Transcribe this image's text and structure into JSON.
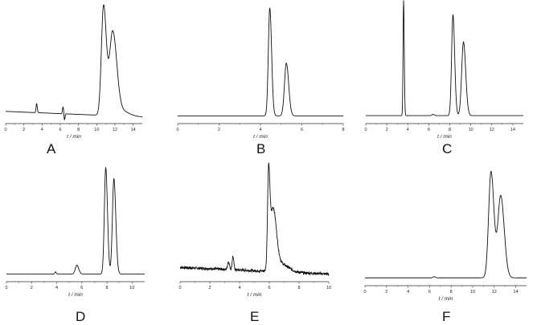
{
  "figure": {
    "panel_letters": [
      "A",
      "B",
      "C",
      "D",
      "E",
      "F"
    ],
    "axis_title": "t / min"
  },
  "chart_data": [
    {
      "type": "line",
      "panel": "A",
      "xlabel": "t / min",
      "xlim": [
        0,
        15
      ],
      "xticks": [
        0,
        2,
        4,
        6,
        8,
        10,
        12,
        14
      ],
      "baseline": {
        "start": 0.08,
        "end": 0.03
      },
      "noise": 0,
      "peaks": [
        {
          "t": 3.4,
          "h": 0.08,
          "w": 0.06
        },
        {
          "t": 6.3,
          "h": 0.06,
          "w": 0.06
        },
        {
          "t": 6.45,
          "h": -0.06,
          "w": 0.05
        },
        {
          "t": 10.75,
          "h": 0.97,
          "w": 0.24
        },
        {
          "t": 11.75,
          "h": 0.73,
          "w": 0.35
        },
        {
          "t": 12.6,
          "h": 0.05,
          "w": 0.7
        }
      ]
    },
    {
      "type": "line",
      "panel": "B",
      "xlabel": "t / min",
      "xlim": [
        0,
        8
      ],
      "xticks": [
        0,
        2,
        4,
        6,
        8
      ],
      "baseline": {
        "start": 0.04,
        "end": 0.04
      },
      "noise": 0,
      "peaks": [
        {
          "t": 4.45,
          "h": 0.96,
          "w": 0.07
        },
        {
          "t": 5.25,
          "h": 0.47,
          "w": 0.09
        }
      ]
    },
    {
      "type": "line",
      "panel": "C",
      "xlabel": "t / min",
      "xlim": [
        0,
        15
      ],
      "xticks": [
        0,
        2,
        4,
        6,
        8,
        10,
        12,
        14
      ],
      "baseline": {
        "start": 0.04,
        "end": 0.04
      },
      "noise": 0,
      "peaks": [
        {
          "t": 3.6,
          "h": 0.97,
          "w": 0.05
        },
        {
          "t": 6.4,
          "h": 0.01,
          "w": 0.1
        },
        {
          "t": 8.3,
          "h": 0.85,
          "w": 0.13
        },
        {
          "t": 9.3,
          "h": 0.62,
          "w": 0.17
        }
      ]
    },
    {
      "type": "line",
      "panel": "D",
      "xlabel": "t / min",
      "xlim": [
        0,
        11
      ],
      "xticks": [
        0,
        2,
        4,
        6,
        8,
        10
      ],
      "baseline": {
        "start": 0.04,
        "end": 0.04
      },
      "noise": 0,
      "peaks": [
        {
          "t": 3.9,
          "h": 0.02,
          "w": 0.05
        },
        {
          "t": 5.6,
          "h": 0.08,
          "w": 0.12
        },
        {
          "t": 7.9,
          "h": 0.96,
          "w": 0.11
        },
        {
          "t": 8.55,
          "h": 0.86,
          "w": 0.12
        }
      ]
    },
    {
      "type": "line",
      "panel": "E",
      "xlabel": "t / min",
      "xlim": [
        0,
        10
      ],
      "xticks": [
        0,
        2,
        4,
        6,
        8,
        10
      ],
      "baseline": {
        "start": 0.1,
        "end": 0.04
      },
      "noise": 0.012,
      "peaks": [
        {
          "t": 3.25,
          "h": 0.07,
          "w": 0.06
        },
        {
          "t": 3.55,
          "h": 0.12,
          "w": 0.05
        },
        {
          "t": 5.95,
          "h": 0.82,
          "w": 0.07
        },
        {
          "t": 6.25,
          "h": 0.55,
          "w": 0.18
        },
        {
          "t": 6.8,
          "h": 0.07,
          "w": 0.4
        }
      ]
    },
    {
      "type": "line",
      "panel": "F",
      "xlabel": "t / min",
      "xlim": [
        0,
        15
      ],
      "xticks": [
        0,
        2,
        4,
        6,
        8,
        10,
        12,
        14
      ],
      "baseline": {
        "start": 0.04,
        "end": 0.04
      },
      "noise": 0,
      "peaks": [
        {
          "t": 6.4,
          "h": 0.01,
          "w": 0.1
        },
        {
          "t": 11.7,
          "h": 0.92,
          "w": 0.22
        },
        {
          "t": 12.6,
          "h": 0.71,
          "w": 0.26
        }
      ]
    }
  ]
}
